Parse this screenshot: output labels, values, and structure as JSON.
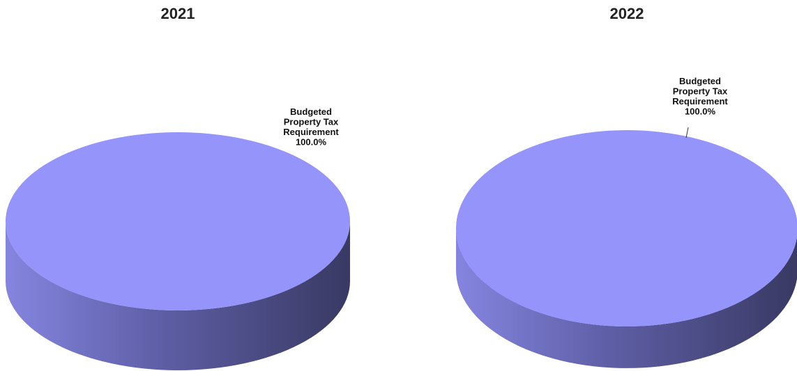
{
  "chart_data": [
    {
      "type": "pie",
      "title": "2021",
      "slices": [
        {
          "label_lines": [
            "Budgeted",
            "Property Tax",
            "Requirement",
            "100.0%"
          ],
          "value": 100.0,
          "color": "#9494fb"
        }
      ],
      "style": "3d"
    },
    {
      "type": "pie",
      "title": "2022",
      "slices": [
        {
          "label_lines": [
            "Budgeted",
            "Property Tax",
            "Requirement",
            "100.0%"
          ],
          "value": 100.0,
          "color": "#9494fb"
        }
      ],
      "style": "3d"
    }
  ]
}
